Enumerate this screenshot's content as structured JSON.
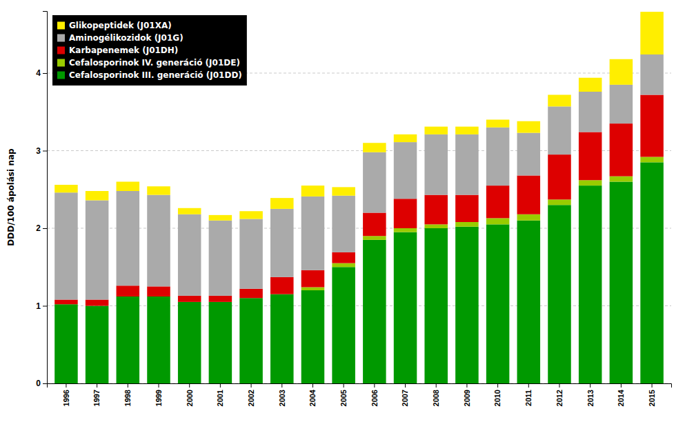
{
  "chart_data": {
    "type": "bar",
    "stacked": true,
    "y_label": "DDD/100 ápolási nap",
    "categories": [
      "1996",
      "1997",
      "1998",
      "1999",
      "2000",
      "2001",
      "2002",
      "2003",
      "2004",
      "2005",
      "2006",
      "2007",
      "2008",
      "2009",
      "2010",
      "2011",
      "2012",
      "2013",
      "2014",
      "2015"
    ],
    "series": [
      {
        "name": "Cefalosporinok III. generáció (J01DD)",
        "color": "#009900",
        "values": [
          1.02,
          1.0,
          1.12,
          1.12,
          1.05,
          1.05,
          1.1,
          1.15,
          1.2,
          1.5,
          1.85,
          1.95,
          2.0,
          2.02,
          2.05,
          2.1,
          2.3,
          2.55,
          2.6,
          2.85
        ]
      },
      {
        "name": "Cefalosporinok IV. generáció (J01DE)",
        "color": "#99cc00",
        "values": [
          0.0,
          0.0,
          0.0,
          0.0,
          0.0,
          0.0,
          0.0,
          0.0,
          0.04,
          0.05,
          0.05,
          0.05,
          0.05,
          0.06,
          0.08,
          0.08,
          0.07,
          0.07,
          0.07,
          0.07
        ]
      },
      {
        "name": "Karbapenemek (J01DH)",
        "color": "#dd0000",
        "values": [
          0.06,
          0.08,
          0.14,
          0.13,
          0.08,
          0.08,
          0.12,
          0.22,
          0.22,
          0.14,
          0.3,
          0.38,
          0.38,
          0.35,
          0.42,
          0.5,
          0.58,
          0.62,
          0.68,
          0.8
        ]
      },
      {
        "name": "Aminogélikozidok (J01G)",
        "color": "#aaaaaa",
        "values": [
          1.38,
          1.28,
          1.22,
          1.18,
          1.05,
          0.97,
          0.9,
          0.88,
          0.95,
          0.73,
          0.78,
          0.73,
          0.78,
          0.78,
          0.75,
          0.55,
          0.62,
          0.52,
          0.5,
          0.52
        ]
      },
      {
        "name": "Glikopeptidek (J01XA)",
        "color": "#ffee00",
        "values": [
          0.1,
          0.12,
          0.12,
          0.11,
          0.08,
          0.07,
          0.1,
          0.14,
          0.14,
          0.11,
          0.12,
          0.1,
          0.1,
          0.1,
          0.1,
          0.15,
          0.15,
          0.18,
          0.33,
          0.55
        ]
      }
    ],
    "ylim": [
      0,
      4.8
    ],
    "yticks": [
      0,
      1,
      2,
      3,
      4
    ],
    "grid": true,
    "legend": "upper left"
  }
}
